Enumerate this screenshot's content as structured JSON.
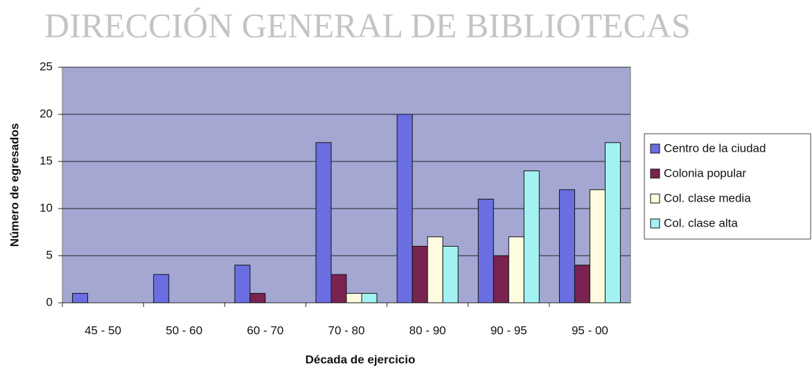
{
  "watermark": "DIRECCIÓN GENERAL DE BIBLIOTECAS",
  "chart_data": {
    "type": "bar",
    "x_label": "Década de ejercicio",
    "y_label": "Número de egresados",
    "categories": [
      "45 - 50",
      "50 - 60",
      "60 - 70",
      "70 - 80",
      "80 - 90",
      "90 - 95",
      "95 - 00"
    ],
    "series": [
      {
        "name": "Centro de la ciudad",
        "color": "#6a6ee0",
        "values": [
          1,
          3,
          4,
          17,
          20,
          11,
          12
        ]
      },
      {
        "name": "Colonia popular",
        "color": "#7a2350",
        "values": [
          0,
          0,
          1,
          3,
          6,
          5,
          4
        ]
      },
      {
        "name": "Col. clase media",
        "color": "#fffbe0",
        "values": [
          0,
          0,
          0,
          1,
          7,
          7,
          12
        ]
      },
      {
        "name": "Col. clase alta",
        "color": "#a2f2f2",
        "values": [
          0,
          0,
          0,
          1,
          6,
          14,
          17
        ]
      }
    ],
    "ylim": [
      0,
      25
    ],
    "yticks": [
      0,
      5,
      10,
      15,
      20,
      25
    ],
    "grid": true,
    "legend": "right",
    "background": "#a3a7d2"
  }
}
